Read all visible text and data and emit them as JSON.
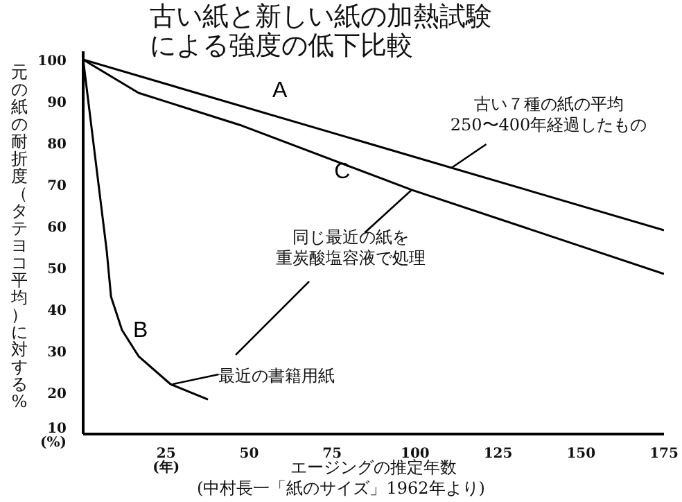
{
  "chart_data": {
    "type": "line",
    "title": "古い紙と新しい紙の加熱試験による強度の低下比較",
    "xlabel": "エージングの推定年数",
    "ylabel": "元の紙の耐折度（タテヨコ平均）に対する%",
    "xlim": [
      0,
      175
    ],
    "ylim": [
      10,
      102
    ],
    "xticks": [
      {
        "value": 25,
        "label": "25\n(年)"
      },
      50,
      75,
      100,
      125,
      150,
      175
    ],
    "yticks": [
      {
        "value": 10,
        "label": "10\n(%)"
      },
      20,
      30,
      40,
      50,
      60,
      70,
      80,
      90,
      100
    ],
    "series": [
      {
        "name": "A",
        "color": "#000000",
        "x": [
          0,
          175
        ],
        "values": [
          100,
          59
        ]
      },
      {
        "name": "B",
        "color": "#000000",
        "x": [
          0,
          7.1,
          8.4,
          11.7,
          16.7,
          26.3,
          37.6
        ],
        "values": [
          100,
          54,
          43,
          35,
          28.7,
          22,
          18.3
        ]
      },
      {
        "name": "C",
        "color": "#000000",
        "x": [
          0,
          16.7,
          47.2,
          99,
          175
        ],
        "values": [
          100,
          92,
          84.3,
          68.7,
          48.5
        ]
      }
    ],
    "annotations": [
      {
        "text": "古い７種の紙の平均250〜400年経過したもの",
        "x": 111,
        "y": 74
      },
      {
        "text": "同じ最近の紙を重炭酸塩容液で処理",
        "x": 99,
        "y": 68.7
      },
      {
        "text": "最近の書籍用紙",
        "x": 27,
        "y": 22
      },
      "(中村長一「紙のサイズ」1962年より)"
    ],
    "grid": false,
    "marker": "none",
    "line_style": "solid"
  }
}
